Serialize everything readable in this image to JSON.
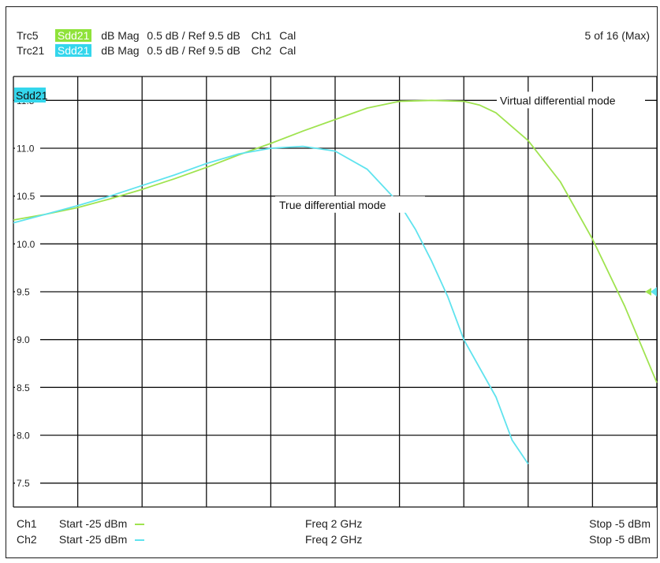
{
  "header": {
    "row1": {
      "trace": "Trc5",
      "param": "Sdd21",
      "format": "dB Mag",
      "scale": "0.5 dB /",
      "ref": "Ref 9.5 dB",
      "channel": "Ch1",
      "cal": "Cal"
    },
    "row2": {
      "trace": "Trc21",
      "param": "Sdd21",
      "format": "dB Mag",
      "scale": "0.5 dB /",
      "ref": "Ref 9.5 dB",
      "channel": "Ch2",
      "cal": "Cal"
    },
    "page_indicator": "5 of 16 (Max)"
  },
  "footer": {
    "row1": {
      "channel": "Ch1",
      "start": "Start -25 dBm",
      "freq": "Freq 2 GHz",
      "stop": "Stop -5 dBm"
    },
    "row2": {
      "channel": "Ch2",
      "start": "Start -25 dBm",
      "freq": "Freq 2 GHz",
      "stop": "Stop -5 dBm"
    }
  },
  "colors": {
    "trace1": "#9fe34f",
    "trace2": "#5fe3ee",
    "label_bg": "#34d6ec",
    "grid": "#111111"
  },
  "chart_data": {
    "type": "line",
    "legend_box": "Sdd21",
    "ylim": [
      7.25,
      11.75
    ],
    "y_ticks": [
      11.5,
      11.0,
      10.5,
      10.0,
      9.5,
      9.0,
      8.5,
      8.0,
      7.5
    ],
    "y_tick_labels": [
      "11.5",
      "11.0",
      "10.5",
      "10.0",
      "9.5",
      "9.0",
      "8.5",
      "8.0",
      "7.5"
    ],
    "x_range": [
      -25,
      -5
    ],
    "x_divisions": 10,
    "grid": true,
    "reference_level": 9.5,
    "series": [
      {
        "name": "Virtual differential mode",
        "color": "#9fe34f",
        "x": [
          -25,
          -24,
          -23,
          -22,
          -21,
          -20,
          -19,
          -18,
          -17,
          -16,
          -15,
          -14,
          -13,
          -12,
          -11,
          -10.5,
          -10,
          -9,
          -8,
          -7,
          -6,
          -5.5,
          -5
        ],
        "y": [
          10.25,
          10.31,
          10.38,
          10.47,
          10.57,
          10.68,
          10.8,
          10.93,
          11.05,
          11.18,
          11.3,
          11.42,
          11.49,
          11.5,
          11.49,
          11.45,
          11.37,
          11.08,
          10.65,
          10.05,
          9.35,
          8.95,
          8.55
        ]
      },
      {
        "name": "True differential mode",
        "color": "#5fe3ee",
        "x": [
          -25,
          -24,
          -23,
          -22,
          -21,
          -20,
          -19,
          -18,
          -17,
          -16,
          -15,
          -14,
          -13,
          -12.5,
          -12,
          -11.5,
          -11,
          -10,
          -9.5,
          -9
        ],
        "y": [
          10.22,
          10.31,
          10.4,
          10.5,
          10.61,
          10.72,
          10.84,
          10.94,
          11.0,
          11.02,
          10.97,
          10.78,
          10.42,
          10.15,
          9.82,
          9.45,
          9.0,
          8.4,
          7.95,
          7.7
        ]
      }
    ],
    "annotations": [
      "Virtual differential mode",
      "True differential mode"
    ]
  }
}
